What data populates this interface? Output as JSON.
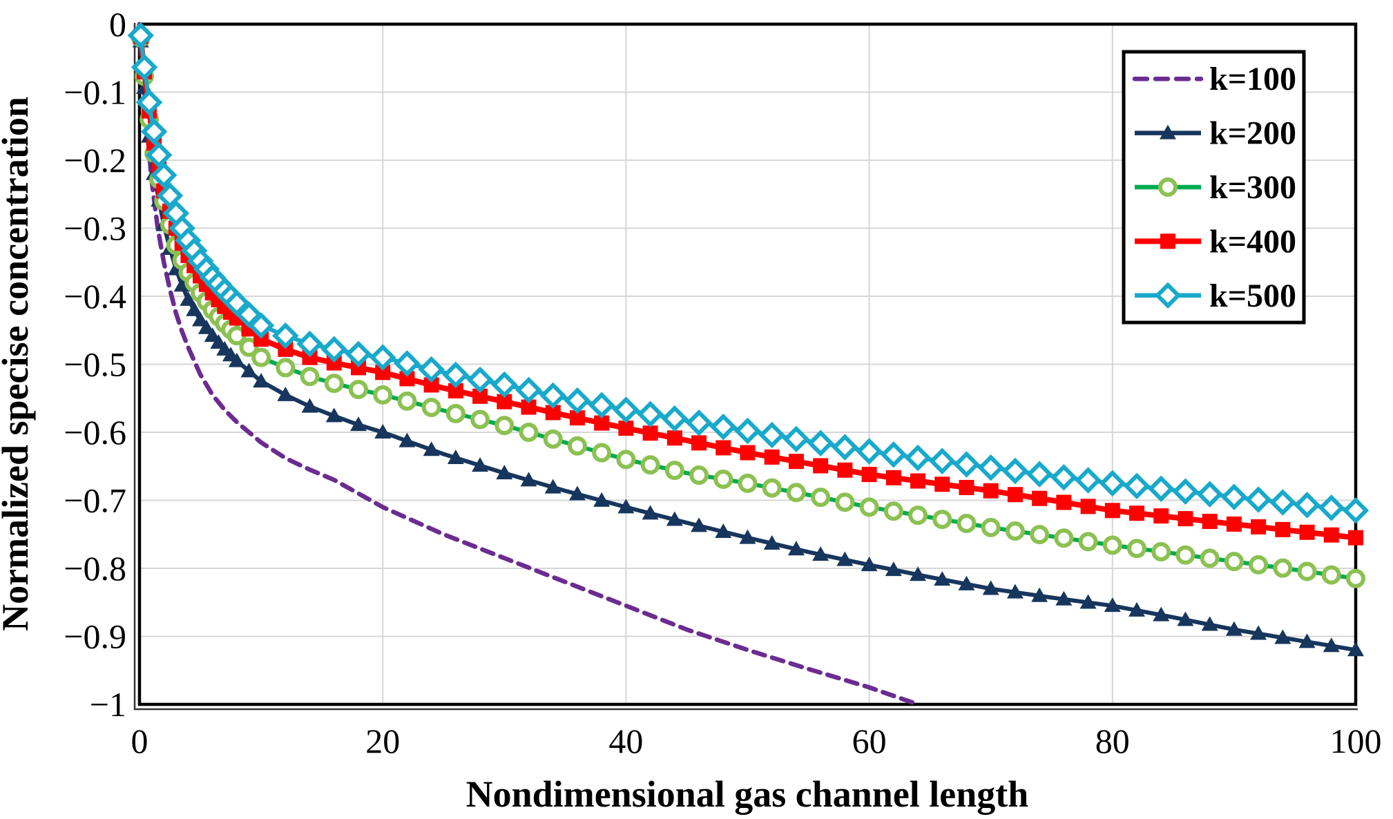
{
  "chart_data": {
    "type": "line",
    "title": "",
    "xlabel": "Nondimensional gas channel length",
    "ylabel": "Normalized specise concentration",
    "xlim": [
      0,
      100
    ],
    "ylim": [
      -1,
      0
    ],
    "grid": true,
    "legend_position": "top-right",
    "x_ticks": [
      0,
      20,
      40,
      60,
      80,
      100
    ],
    "x_tick_labels": [
      "0",
      "20",
      "40",
      "60",
      "80",
      "100"
    ],
    "y_ticks": [
      0,
      -0.1,
      -0.2,
      -0.3,
      -0.4,
      -0.5,
      -0.6,
      -0.7,
      -0.8,
      -0.9,
      -1
    ],
    "y_tick_labels": [
      "0",
      "−0.1",
      "−0.2",
      "−0.3",
      "−0.4",
      "−0.5",
      "−0.6",
      "−0.7",
      "−0.8",
      "−0.9",
      "−1"
    ],
    "colors": {
      "grid": "#D6D6D6",
      "frame": "#000000",
      "background": "#FFFFFF"
    },
    "series": [
      {
        "name": "k=100",
        "color": "#6B2C91",
        "line_style": "dashed",
        "marker": "none",
        "points": [
          [
            0,
            0
          ],
          [
            0.3,
            -0.09
          ],
          [
            0.6,
            -0.15
          ],
          [
            1,
            -0.23
          ],
          [
            1.5,
            -0.3
          ],
          [
            2,
            -0.35
          ],
          [
            2.5,
            -0.39
          ],
          [
            3,
            -0.425
          ],
          [
            3.5,
            -0.452
          ],
          [
            4,
            -0.475
          ],
          [
            5,
            -0.515
          ],
          [
            6,
            -0.545
          ],
          [
            7,
            -0.567
          ],
          [
            8,
            -0.585
          ],
          [
            9,
            -0.6
          ],
          [
            10,
            -0.615
          ],
          [
            12,
            -0.638
          ],
          [
            14,
            -0.655
          ],
          [
            16,
            -0.67
          ],
          [
            18,
            -0.69
          ],
          [
            20,
            -0.71
          ],
          [
            25,
            -0.75
          ],
          [
            30,
            -0.785
          ],
          [
            35,
            -0.82
          ],
          [
            40,
            -0.855
          ],
          [
            45,
            -0.89
          ],
          [
            50,
            -0.92
          ],
          [
            55,
            -0.948
          ],
          [
            60,
            -0.975
          ],
          [
            64,
            -1.0
          ]
        ]
      },
      {
        "name": "k=200",
        "color": "#17365D",
        "line_style": "solid",
        "marker": "triangle",
        "marker_color": "#17365D",
        "points": [
          [
            0,
            0
          ],
          [
            0.3,
            -0.075
          ],
          [
            0.6,
            -0.13
          ],
          [
            1,
            -0.2
          ],
          [
            1.5,
            -0.25
          ],
          [
            2,
            -0.295
          ],
          [
            2.5,
            -0.33
          ],
          [
            3,
            -0.36
          ],
          [
            3.5,
            -0.384
          ],
          [
            4,
            -0.405
          ],
          [
            5,
            -0.435
          ],
          [
            6,
            -0.458
          ],
          [
            7,
            -0.478
          ],
          [
            8,
            -0.495
          ],
          [
            9,
            -0.51
          ],
          [
            10,
            -0.525
          ],
          [
            12,
            -0.545
          ],
          [
            14,
            -0.562
          ],
          [
            16,
            -0.576
          ],
          [
            18,
            -0.589
          ],
          [
            20,
            -0.6
          ],
          [
            25,
            -0.632
          ],
          [
            30,
            -0.66
          ],
          [
            35,
            -0.686
          ],
          [
            40,
            -0.71
          ],
          [
            45,
            -0.733
          ],
          [
            50,
            -0.755
          ],
          [
            55,
            -0.776
          ],
          [
            60,
            -0.795
          ],
          [
            65,
            -0.813
          ],
          [
            70,
            -0.83
          ],
          [
            75,
            -0.843
          ],
          [
            80,
            -0.855
          ],
          [
            85,
            -0.872
          ],
          [
            90,
            -0.89
          ],
          [
            95,
            -0.905
          ],
          [
            100,
            -0.92
          ]
        ]
      },
      {
        "name": "k=300",
        "color": "#00AC4F",
        "line_style": "solid",
        "marker": "circle-open",
        "marker_color": "#8CC152",
        "points": [
          [
            0,
            0
          ],
          [
            0.3,
            -0.06
          ],
          [
            0.6,
            -0.11
          ],
          [
            1,
            -0.17
          ],
          [
            1.5,
            -0.22
          ],
          [
            2,
            -0.26
          ],
          [
            2.5,
            -0.295
          ],
          [
            3,
            -0.325
          ],
          [
            3.5,
            -0.347
          ],
          [
            4,
            -0.365
          ],
          [
            5,
            -0.395
          ],
          [
            6,
            -0.42
          ],
          [
            7,
            -0.44
          ],
          [
            8,
            -0.458
          ],
          [
            9,
            -0.475
          ],
          [
            10,
            -0.49
          ],
          [
            12,
            -0.505
          ],
          [
            14,
            -0.518
          ],
          [
            16,
            -0.528
          ],
          [
            18,
            -0.537
          ],
          [
            20,
            -0.545
          ],
          [
            25,
            -0.568
          ],
          [
            30,
            -0.59
          ],
          [
            35,
            -0.615
          ],
          [
            40,
            -0.64
          ],
          [
            45,
            -0.66
          ],
          [
            50,
            -0.675
          ],
          [
            55,
            -0.692
          ],
          [
            60,
            -0.71
          ],
          [
            65,
            -0.725
          ],
          [
            70,
            -0.74
          ],
          [
            75,
            -0.753
          ],
          [
            80,
            -0.766
          ],
          [
            85,
            -0.778
          ],
          [
            90,
            -0.79
          ],
          [
            95,
            -0.802
          ],
          [
            100,
            -0.815
          ]
        ]
      },
      {
        "name": "k=400",
        "color": "#FF0000",
        "line_style": "solid",
        "marker": "square",
        "marker_color": "#FF0000",
        "points": [
          [
            0,
            0
          ],
          [
            0.3,
            -0.055
          ],
          [
            0.6,
            -0.1
          ],
          [
            1,
            -0.155
          ],
          [
            1.5,
            -0.205
          ],
          [
            2,
            -0.245
          ],
          [
            2.5,
            -0.275
          ],
          [
            3,
            -0.3
          ],
          [
            3.5,
            -0.322
          ],
          [
            4,
            -0.34
          ],
          [
            5,
            -0.37
          ],
          [
            6,
            -0.395
          ],
          [
            7,
            -0.415
          ],
          [
            8,
            -0.432
          ],
          [
            9,
            -0.448
          ],
          [
            10,
            -0.463
          ],
          [
            12,
            -0.478
          ],
          [
            14,
            -0.49
          ],
          [
            16,
            -0.498
          ],
          [
            18,
            -0.505
          ],
          [
            20,
            -0.512
          ],
          [
            25,
            -0.535
          ],
          [
            30,
            -0.555
          ],
          [
            35,
            -0.575
          ],
          [
            40,
            -0.594
          ],
          [
            45,
            -0.612
          ],
          [
            50,
            -0.63
          ],
          [
            55,
            -0.646
          ],
          [
            60,
            -0.662
          ],
          [
            65,
            -0.674
          ],
          [
            70,
            -0.686
          ],
          [
            75,
            -0.7
          ],
          [
            80,
            -0.715
          ],
          [
            85,
            -0.725
          ],
          [
            90,
            -0.735
          ],
          [
            95,
            -0.745
          ],
          [
            100,
            -0.755
          ]
        ]
      },
      {
        "name": "k=500",
        "color": "#18A9CB",
        "line_style": "solid",
        "marker": "diamond-open",
        "marker_color": "#18A9CB",
        "points": [
          [
            0,
            0
          ],
          [
            0.3,
            -0.05
          ],
          [
            0.6,
            -0.09
          ],
          [
            1,
            -0.14
          ],
          [
            1.5,
            -0.185
          ],
          [
            2,
            -0.222
          ],
          [
            2.5,
            -0.252
          ],
          [
            3,
            -0.278
          ],
          [
            3.5,
            -0.3
          ],
          [
            4,
            -0.318
          ],
          [
            5,
            -0.348
          ],
          [
            6,
            -0.372
          ],
          [
            7,
            -0.392
          ],
          [
            8,
            -0.41
          ],
          [
            9,
            -0.427
          ],
          [
            10,
            -0.443
          ],
          [
            12,
            -0.458
          ],
          [
            14,
            -0.47
          ],
          [
            16,
            -0.478
          ],
          [
            18,
            -0.485
          ],
          [
            20,
            -0.49
          ],
          [
            25,
            -0.512
          ],
          [
            30,
            -0.53
          ],
          [
            35,
            -0.55
          ],
          [
            40,
            -0.567
          ],
          [
            45,
            -0.583
          ],
          [
            50,
            -0.598
          ],
          [
            55,
            -0.613
          ],
          [
            60,
            -0.628
          ],
          [
            65,
            -0.64
          ],
          [
            70,
            -0.652
          ],
          [
            75,
            -0.664
          ],
          [
            80,
            -0.675
          ],
          [
            85,
            -0.685
          ],
          [
            90,
            -0.695
          ],
          [
            95,
            -0.705
          ],
          [
            100,
            -0.715
          ]
        ]
      }
    ]
  }
}
